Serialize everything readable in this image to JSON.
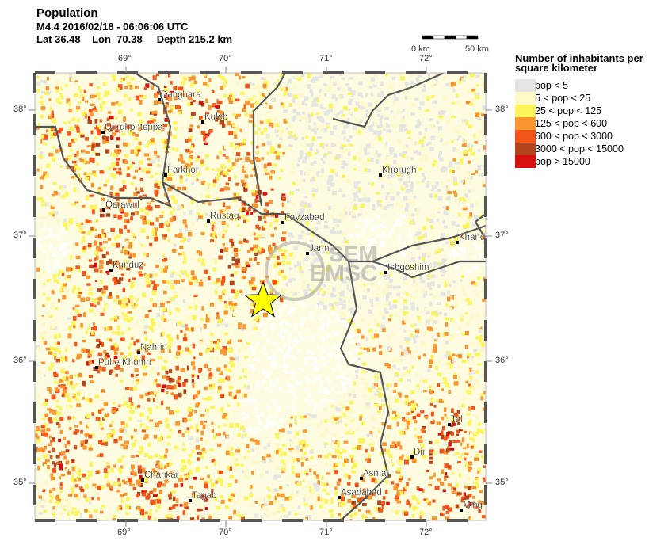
{
  "header": {
    "title": "Population",
    "event": "M4.4  2016/02/18 - 06:06:06 UTC",
    "location": "Lat 36.48    Lon  70.38     Depth 215.2 km"
  },
  "scale_bar": {
    "left": "0 km",
    "right": "50 km"
  },
  "axes": {
    "lon_ticks": [
      "69°",
      "70°",
      "71°",
      "72°"
    ],
    "lat_ticks": [
      "38°",
      "37°",
      "36°",
      "35°"
    ]
  },
  "legend": {
    "title": "Number of inhabitants per square kilometer",
    "items": [
      {
        "label": "pop < 5",
        "color": "#e5e5e3"
      },
      {
        "label": "5 < pop < 25",
        "color": "#fdfac8"
      },
      {
        "label": "25 < pop < 125",
        "color": "#fcf55a"
      },
      {
        "label": "125 < pop < 600",
        "color": "#f9962f"
      },
      {
        "label": "600 < pop < 3000",
        "color": "#f3561a"
      },
      {
        "label": "3000 < pop < 15000",
        "color": "#b3441b"
      },
      {
        "label": "pop > 15000",
        "color": "#d6100f"
      }
    ]
  },
  "cities": [
    "Danghara",
    "Qurghonteppa",
    "Kulob",
    "Farkhor",
    "Qarawul",
    "Rustaq",
    "Fayzabad",
    "Khorugh",
    "Khandud",
    "Jarm",
    "Ishqoshim",
    "Kunduz",
    "Nahrin",
    "Pul-e Khumri",
    "Tal",
    "Dir",
    "Asmar",
    "Asadabad",
    "Charikar",
    "Tagab",
    "Ming"
  ],
  "watermark": "SEM EMSC",
  "epicenter": {
    "icon": "star-icon",
    "color": "#ffff00"
  }
}
